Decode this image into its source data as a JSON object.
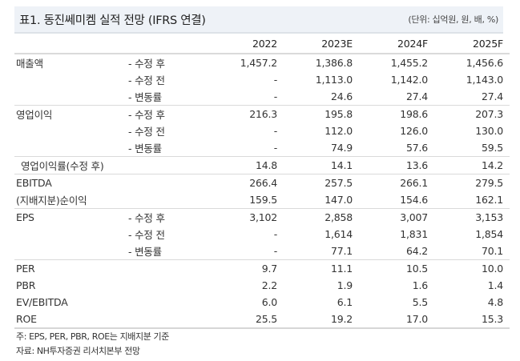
{
  "header": {
    "title": "표1. 동진쎄미켐 실적 전망 (IFRS 연결)",
    "unit": "(단위: 십억원, 원, 배, %)"
  },
  "table": {
    "columns": [
      "2022",
      "2023E",
      "2024F",
      "2025F"
    ],
    "rows": [
      {
        "label": "매출액",
        "sub": "- 수정 후",
        "values": [
          "1,457.2",
          "1,386.8",
          "1,455.2",
          "1,456.6"
        ]
      },
      {
        "label": "",
        "sub": "- 수정 전",
        "values": [
          "-",
          "1,113.0",
          "1,142.0",
          "1,143.0"
        ]
      },
      {
        "label": "",
        "sub": "- 변동률",
        "values": [
          "-",
          "24.6",
          "27.4",
          "27.4"
        ]
      },
      {
        "label": "영업이익",
        "sub": "- 수정 후",
        "values": [
          "216.3",
          "195.8",
          "198.6",
          "207.3"
        ]
      },
      {
        "label": "",
        "sub": "- 수정 전",
        "values": [
          "-",
          "112.0",
          "126.0",
          "130.0"
        ]
      },
      {
        "label": "",
        "sub": "- 변동률",
        "values": [
          "-",
          "74.9",
          "57.6",
          "59.5"
        ]
      },
      {
        "label": "영업이익률(수정 후)",
        "sub": "",
        "values": [
          "14.8",
          "14.1",
          "13.6",
          "14.2"
        ]
      },
      {
        "label": "EBITDA",
        "sub": "",
        "values": [
          "266.4",
          "257.5",
          "266.1",
          "279.5"
        ]
      },
      {
        "label": "(지배지분)순이익",
        "sub": "",
        "values": [
          "159.5",
          "147.0",
          "154.6",
          "162.1"
        ]
      },
      {
        "label": "EPS",
        "sub": "- 수정 후",
        "values": [
          "3,102",
          "2,858",
          "3,007",
          "3,153"
        ]
      },
      {
        "label": "",
        "sub": "- 수정 전",
        "values": [
          "-",
          "1,614",
          "1,831",
          "1,854"
        ]
      },
      {
        "label": "",
        "sub": "- 변동률",
        "values": [
          "-",
          "77.1",
          "64.2",
          "70.1"
        ]
      },
      {
        "label": "PER",
        "sub": "",
        "values": [
          "9.7",
          "11.1",
          "10.5",
          "10.0"
        ]
      },
      {
        "label": "PBR",
        "sub": "",
        "values": [
          "2.2",
          "1.9",
          "1.6",
          "1.4"
        ]
      },
      {
        "label": "EV/EBITDA",
        "sub": "",
        "values": [
          "6.0",
          "6.1",
          "5.5",
          "4.8"
        ]
      },
      {
        "label": "ROE",
        "sub": "",
        "values": [
          "25.5",
          "19.2",
          "17.0",
          "15.3"
        ]
      }
    ]
  },
  "notes": {
    "note": "주: EPS, PER, PBR, ROE는 지배지분 기준",
    "source": "자료: NH투자증권 리서치본부 전망"
  }
}
